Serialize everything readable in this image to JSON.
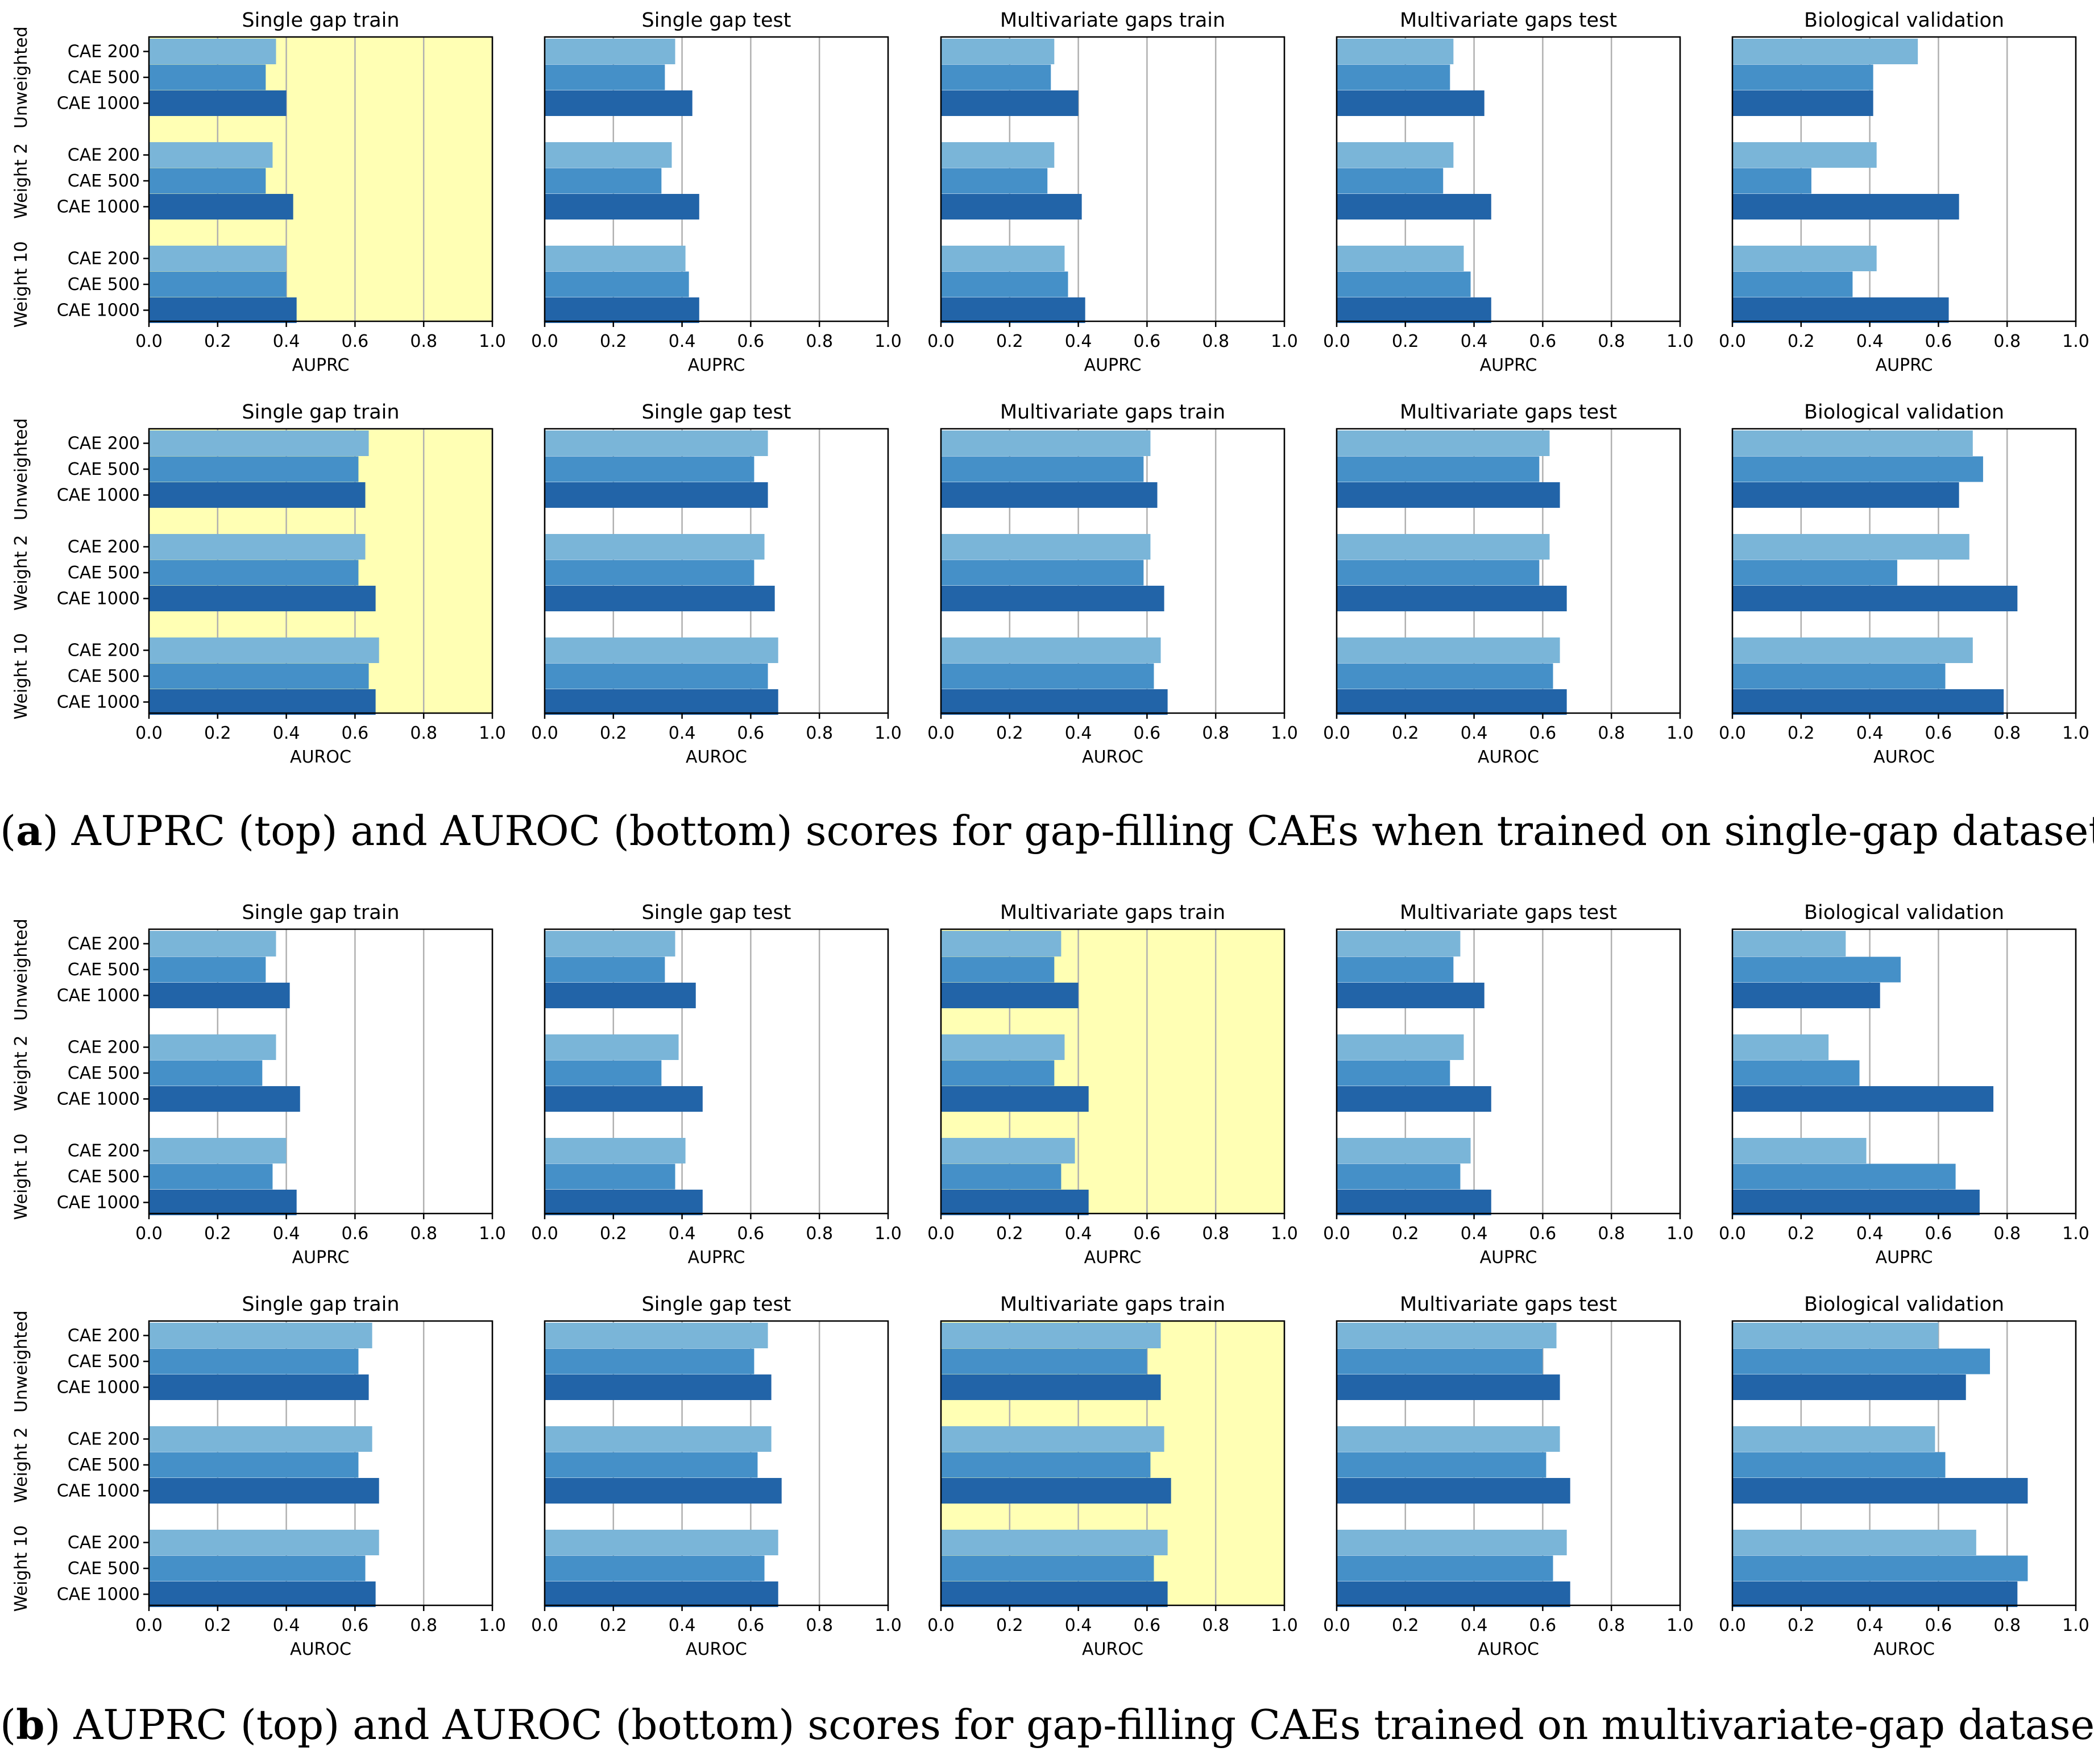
{
  "captions": {
    "a_letter": "a",
    "a_text": "AUPRC (top) and AUROC (bottom) scores for gap-filling CAEs when trained on single-gap dataset.",
    "b_letter": "b",
    "b_text": "AUPRC (top) and AUROC (bottom) scores for gap-filling CAEs trained on multivariate-gap dataset."
  },
  "colors": {
    "cae200": "#7ab5d8",
    "cae500": "#4590c8",
    "cae1000": "#2264a8",
    "highlight": "#ffffb4",
    "grid": "#b0b0b0"
  },
  "chart_data": [
    {
      "type": "bar",
      "orientation": "horizontal",
      "figure": "a",
      "row": "top",
      "titles": [
        "Single gap train",
        "Single gap test",
        "Multivariate gaps train",
        "Multivariate gaps test",
        "Biological validation"
      ],
      "group_labels": [
        "Unweighted",
        "Weight 2",
        "Weight 10"
      ],
      "bar_labels": [
        "CAE 200",
        "CAE 500",
        "CAE 1000"
      ],
      "xlabel": "AUPRC",
      "xlim": [
        0,
        1
      ],
      "xticks": [
        "0.0",
        "0.2",
        "0.4",
        "0.6",
        "0.8",
        "1.0"
      ],
      "highlight_panel": 0,
      "values": [
        [
          [
            0.37,
            0.34,
            0.4
          ],
          [
            0.36,
            0.34,
            0.42
          ],
          [
            0.4,
            0.4,
            0.43
          ]
        ],
        [
          [
            0.38,
            0.35,
            0.43
          ],
          [
            0.37,
            0.34,
            0.45
          ],
          [
            0.41,
            0.42,
            0.45
          ]
        ],
        [
          [
            0.33,
            0.32,
            0.4
          ],
          [
            0.33,
            0.31,
            0.41
          ],
          [
            0.36,
            0.37,
            0.42
          ]
        ],
        [
          [
            0.34,
            0.33,
            0.43
          ],
          [
            0.34,
            0.31,
            0.45
          ],
          [
            0.37,
            0.39,
            0.45
          ]
        ],
        [
          [
            0.54,
            0.41,
            0.41
          ],
          [
            0.42,
            0.23,
            0.66
          ],
          [
            0.42,
            0.35,
            0.63
          ]
        ]
      ]
    },
    {
      "type": "bar",
      "orientation": "horizontal",
      "figure": "a",
      "row": "bottom",
      "titles": [
        "Single gap train",
        "Single gap test",
        "Multivariate gaps train",
        "Multivariate gaps test",
        "Biological validation"
      ],
      "group_labels": [
        "Unweighted",
        "Weight 2",
        "Weight 10"
      ],
      "bar_labels": [
        "CAE 200",
        "CAE 500",
        "CAE 1000"
      ],
      "xlabel": "AUROC",
      "xlim": [
        0,
        1
      ],
      "xticks": [
        "0.0",
        "0.2",
        "0.4",
        "0.6",
        "0.8",
        "1.0"
      ],
      "highlight_panel": 0,
      "values": [
        [
          [
            0.64,
            0.61,
            0.63
          ],
          [
            0.63,
            0.61,
            0.66
          ],
          [
            0.67,
            0.64,
            0.66
          ]
        ],
        [
          [
            0.65,
            0.61,
            0.65
          ],
          [
            0.64,
            0.61,
            0.67
          ],
          [
            0.68,
            0.65,
            0.68
          ]
        ],
        [
          [
            0.61,
            0.59,
            0.63
          ],
          [
            0.61,
            0.59,
            0.65
          ],
          [
            0.64,
            0.62,
            0.66
          ]
        ],
        [
          [
            0.62,
            0.59,
            0.65
          ],
          [
            0.62,
            0.59,
            0.67
          ],
          [
            0.65,
            0.63,
            0.67
          ]
        ],
        [
          [
            0.7,
            0.73,
            0.66
          ],
          [
            0.69,
            0.48,
            0.83
          ],
          [
            0.7,
            0.62,
            0.79
          ]
        ]
      ]
    },
    {
      "type": "bar",
      "orientation": "horizontal",
      "figure": "b",
      "row": "top",
      "titles": [
        "Single gap train",
        "Single gap test",
        "Multivariate gaps train",
        "Multivariate gaps test",
        "Biological validation"
      ],
      "group_labels": [
        "Unweighted",
        "Weight 2",
        "Weight 10"
      ],
      "bar_labels": [
        "CAE 200",
        "CAE 500",
        "CAE 1000"
      ],
      "xlabel": "AUPRC",
      "xlim": [
        0,
        1
      ],
      "xticks": [
        "0.0",
        "0.2",
        "0.4",
        "0.6",
        "0.8",
        "1.0"
      ],
      "highlight_panel": 2,
      "values": [
        [
          [
            0.37,
            0.34,
            0.41
          ],
          [
            0.37,
            0.33,
            0.44
          ],
          [
            0.4,
            0.36,
            0.43
          ]
        ],
        [
          [
            0.38,
            0.35,
            0.44
          ],
          [
            0.39,
            0.34,
            0.46
          ],
          [
            0.41,
            0.38,
            0.46
          ]
        ],
        [
          [
            0.35,
            0.33,
            0.4
          ],
          [
            0.36,
            0.33,
            0.43
          ],
          [
            0.39,
            0.35,
            0.43
          ]
        ],
        [
          [
            0.36,
            0.34,
            0.43
          ],
          [
            0.37,
            0.33,
            0.45
          ],
          [
            0.39,
            0.36,
            0.45
          ]
        ],
        [
          [
            0.33,
            0.49,
            0.43
          ],
          [
            0.28,
            0.37,
            0.76
          ],
          [
            0.39,
            0.65,
            0.72
          ]
        ]
      ]
    },
    {
      "type": "bar",
      "orientation": "horizontal",
      "figure": "b",
      "row": "bottom",
      "titles": [
        "Single gap train",
        "Single gap test",
        "Multivariate gaps train",
        "Multivariate gaps test",
        "Biological validation"
      ],
      "group_labels": [
        "Unweighted",
        "Weight 2",
        "Weight 10"
      ],
      "bar_labels": [
        "CAE 200",
        "CAE 500",
        "CAE 1000"
      ],
      "xlabel": "AUROC",
      "xlim": [
        0,
        1
      ],
      "xticks": [
        "0.0",
        "0.2",
        "0.4",
        "0.6",
        "0.8",
        "1.0"
      ],
      "highlight_panel": 2,
      "values": [
        [
          [
            0.65,
            0.61,
            0.64
          ],
          [
            0.65,
            0.61,
            0.67
          ],
          [
            0.67,
            0.63,
            0.66
          ]
        ],
        [
          [
            0.65,
            0.61,
            0.66
          ],
          [
            0.66,
            0.62,
            0.69
          ],
          [
            0.68,
            0.64,
            0.68
          ]
        ],
        [
          [
            0.64,
            0.6,
            0.64
          ],
          [
            0.65,
            0.61,
            0.67
          ],
          [
            0.66,
            0.62,
            0.66
          ]
        ],
        [
          [
            0.64,
            0.6,
            0.65
          ],
          [
            0.65,
            0.61,
            0.68
          ],
          [
            0.67,
            0.63,
            0.68
          ]
        ],
        [
          [
            0.6,
            0.75,
            0.68
          ],
          [
            0.59,
            0.62,
            0.86
          ],
          [
            0.71,
            0.86,
            0.83
          ]
        ]
      ]
    }
  ]
}
